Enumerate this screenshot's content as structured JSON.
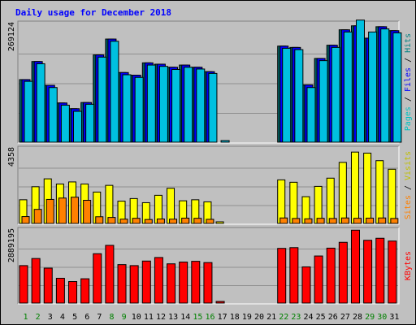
{
  "chart_data": {
    "type": "bar",
    "title": "Daily usage for December 2018",
    "categories": [
      "1",
      "2",
      "3",
      "4",
      "5",
      "6",
      "7",
      "8",
      "9",
      "10",
      "11",
      "12",
      "13",
      "14",
      "15",
      "16",
      "17",
      "18",
      "19",
      "20",
      "21",
      "22",
      "23",
      "24",
      "25",
      "26",
      "27",
      "28",
      "29",
      "30",
      "31"
    ],
    "weekend_categories": [
      "1",
      "2",
      "8",
      "9",
      "15",
      "16",
      "22",
      "23",
      "29",
      "30"
    ],
    "panels": [
      {
        "id": "hits",
        "max_label": "269124",
        "max_value": 269124,
        "side_label": [
          "Pages",
          "Files",
          "Hits"
        ],
        "side_label_colors": [
          "#00c0c0",
          "#0000ff",
          "#008080"
        ],
        "series": [
          {
            "name": "Hits",
            "color": "#006060",
            "values": [
              142000,
              183000,
              129000,
              89000,
              76000,
              90000,
              198000,
              234000,
              158000,
              152000,
              180000,
              177000,
              170000,
              175000,
              170000,
              160000,
              0,
              0,
              0,
              0,
              0,
              218000,
              215000,
              130000,
              190000,
              220000,
              255000,
              264000,
              236000,
              262000,
              253000
            ]
          },
          {
            "name": "Files",
            "color": "#0000ff",
            "values": [
              142000,
              183000,
              129000,
              89000,
              76000,
              90000,
              198000,
              234000,
              158000,
              152000,
              180000,
              177000,
              170000,
              175000,
              170000,
              160000,
              0,
              0,
              0,
              0,
              0,
              218000,
              215000,
              130000,
              190000,
              220000,
              255000,
              264000,
              236000,
              262000,
              253000
            ]
          },
          {
            "name": "Pages",
            "color": "#00c0e0",
            "values": [
              138000,
              178000,
              124000,
              84000,
              70000,
              86000,
              193000,
              229000,
              153000,
              147000,
              175000,
              172000,
              165000,
              170000,
              166000,
              156000,
              2000,
              0,
              0,
              0,
              0,
              213000,
              210000,
              124000,
              185000,
              215000,
              250000,
              277000,
              250000,
              257000,
              248000
            ]
          }
        ]
      },
      {
        "id": "visits",
        "max_label": "4358",
        "max_value": 4358,
        "side_label": [
          "Sites",
          "Visits"
        ],
        "side_label_colors": [
          "#ff8000",
          "#c0c000"
        ],
        "series": [
          {
            "name": "Visits",
            "color": "#ffff00",
            "values": [
              1380,
              2140,
              2600,
              2300,
              2420,
              2300,
              1830,
              2220,
              1300,
              1450,
              1210,
              1640,
              2050,
              1320,
              1380,
              1260,
              30,
              0,
              0,
              0,
              0,
              2540,
              2400,
              1560,
              2160,
              2640,
              3560,
              4160,
              4100,
              3660,
              3160
            ]
          },
          {
            "name": "Sites",
            "color": "#ff8000",
            "values": [
              400,
              820,
              1400,
              1480,
              1530,
              1350,
              390,
              350,
              250,
              300,
              230,
              260,
              250,
              310,
              300,
              240,
              0,
              0,
              0,
              0,
              0,
              320,
              290,
              270,
              300,
              290,
              320,
              300,
              310,
              320,
              290
            ]
          }
        ]
      },
      {
        "id": "kbytes",
        "max_label": "2889195",
        "max_value": 2889195,
        "side_label": [
          "KBytes"
        ],
        "side_label_colors": [
          "#ff0000"
        ],
        "series": [
          {
            "name": "KBytes",
            "color": "#ff0000",
            "values": [
              1480000,
              1760000,
              1380000,
              980000,
              850000,
              960000,
              1950000,
              2280000,
              1520000,
              1480000,
              1660000,
              1800000,
              1550000,
              1620000,
              1650000,
              1600000,
              20000,
              0,
              0,
              0,
              0,
              2160000,
              2190000,
              1430000,
              1860000,
              2170000,
              2400000,
              2880000,
              2480000,
              2560000,
              2450000
            ]
          }
        ]
      }
    ]
  }
}
